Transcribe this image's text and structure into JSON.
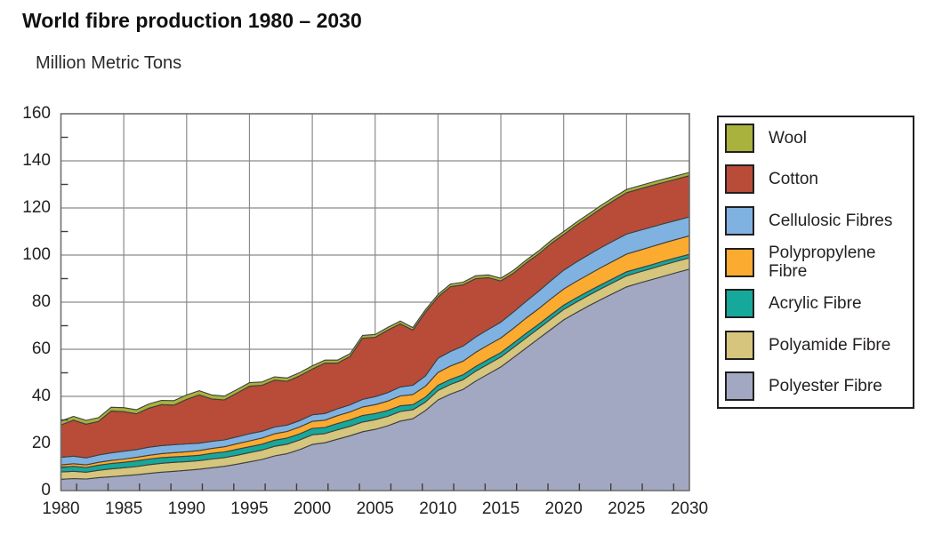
{
  "chart_data": {
    "type": "area",
    "stacked": true,
    "title": "World fibre production 1980 – 2030",
    "ylabel": "Million Metric Tons",
    "xlabel": "",
    "x_min": 1980,
    "x_max": 2030,
    "x_step": 1,
    "ylim": [
      0,
      160
    ],
    "y_major_ticks": [
      0,
      20,
      40,
      60,
      80,
      100,
      120,
      140,
      160
    ],
    "y_minor_tick_step": 10,
    "x_tick_years": [
      1980,
      1985,
      1990,
      1995,
      2000,
      2005,
      2010,
      2015,
      2020,
      2025,
      2030
    ],
    "x_minor_tick_step": 2.5,
    "grid": "major-both",
    "legend_position": "right-box",
    "legend_order_top_to_bottom": [
      "wool",
      "cotton",
      "cellulosic",
      "polypropylene",
      "acrylic",
      "polyamide",
      "polyester"
    ],
    "frame_color": "#6f6f6f",
    "grid_color": "#8a8a8a",
    "band_outline_color": "#3f3f3f",
    "tick_color": "#3f3f3f",
    "series": [
      {
        "id": "polyester",
        "label": "Polyester Fibre",
        "color": "#a2a8c1",
        "values": [
          4.8,
          5.1,
          4.9,
          5.5,
          5.9,
          6.3,
          6.7,
          7.3,
          7.8,
          8.2,
          8.6,
          9.1,
          9.7,
          10.3,
          11.2,
          12.2,
          13.2,
          14.7,
          15.7,
          17.4,
          19.6,
          20.3,
          21.8,
          23.3,
          25.0,
          26.0,
          27.5,
          29.5,
          30.5,
          34.0,
          38.5,
          41.0,
          43.0,
          46.5,
          49.5,
          52.5,
          56.5,
          60.5,
          64.5,
          68.5,
          72.5,
          75.5,
          78.5,
          81.2,
          83.9,
          86.5,
          88.1,
          89.6,
          91.1,
          92.6,
          94.0
        ]
      },
      {
        "id": "polyamide",
        "label": "Polyamide Fibre",
        "color": "#d5c57d",
        "values": [
          3.1,
          3.1,
          2.9,
          3.1,
          3.3,
          3.4,
          3.5,
          3.7,
          3.8,
          3.8,
          3.7,
          3.6,
          3.7,
          3.7,
          3.8,
          3.9,
          4.0,
          4.1,
          4.0,
          4.1,
          4.1,
          3.9,
          4.0,
          4.0,
          4.1,
          4.1,
          4.0,
          4.1,
          3.8,
          3.6,
          4.0,
          4.1,
          4.1,
          4.2,
          4.2,
          4.2,
          4.2,
          4.3,
          4.3,
          4.4,
          4.4,
          4.5,
          4.5,
          4.6,
          4.6,
          4.7,
          4.7,
          4.7,
          4.8,
          4.8,
          4.8
        ]
      },
      {
        "id": "acrylic",
        "label": "Acrylic Fibre",
        "color": "#16a89b",
        "values": [
          2.0,
          2.1,
          2.0,
          2.2,
          2.3,
          2.3,
          2.4,
          2.4,
          2.4,
          2.3,
          2.3,
          2.3,
          2.4,
          2.4,
          2.5,
          2.5,
          2.5,
          2.6,
          2.6,
          2.6,
          2.7,
          2.6,
          2.7,
          2.7,
          2.8,
          2.6,
          2.5,
          2.4,
          2.2,
          2.1,
          2.2,
          2.1,
          2.1,
          2.0,
          2.0,
          1.9,
          1.9,
          1.9,
          1.8,
          1.8,
          1.8,
          1.8,
          1.7,
          1.7,
          1.7,
          1.7,
          1.6,
          1.6,
          1.6,
          1.5,
          1.5
        ]
      },
      {
        "id": "polypropylene",
        "label": "Polypropylene Fibre",
        "color": "#fbab30",
        "values": [
          1.0,
          1.1,
          1.1,
          1.2,
          1.3,
          1.4,
          1.5,
          1.6,
          1.7,
          1.8,
          1.9,
          2.0,
          2.1,
          2.2,
          2.4,
          2.5,
          2.6,
          2.7,
          2.8,
          2.9,
          3.0,
          3.1,
          3.3,
          3.4,
          3.6,
          3.8,
          4.0,
          4.2,
          4.3,
          4.6,
          5.5,
          5.7,
          5.8,
          6.0,
          6.1,
          6.2,
          6.3,
          6.5,
          6.6,
          6.8,
          6.9,
          7.0,
          7.1,
          7.3,
          7.4,
          7.5,
          7.6,
          7.7,
          7.7,
          7.8,
          7.9
        ]
      },
      {
        "id": "cellulosic",
        "label": "Cellulosic Fibres",
        "color": "#7fb2e1",
        "values": [
          3.2,
          3.2,
          3.0,
          3.1,
          3.2,
          3.3,
          3.3,
          3.4,
          3.4,
          3.4,
          3.3,
          3.1,
          3.0,
          2.9,
          2.9,
          3.0,
          2.9,
          2.9,
          2.7,
          2.7,
          2.8,
          2.8,
          2.9,
          3.0,
          3.2,
          3.4,
          3.6,
          3.8,
          3.9,
          4.4,
          6.0,
          6.2,
          6.4,
          6.5,
          6.6,
          6.7,
          6.9,
          7.1,
          7.4,
          7.7,
          8.0,
          8.2,
          8.4,
          8.5,
          8.5,
          8.5,
          8.4,
          8.3,
          8.2,
          8.1,
          8.0
        ]
      },
      {
        "id": "cotton",
        "label": "Cotton",
        "color": "#b84c38",
        "values": [
          13.8,
          15.3,
          14.3,
          14.3,
          17.8,
          16.8,
          15.2,
          16.6,
          17.4,
          16.8,
          18.9,
          20.5,
          18.0,
          17.0,
          18.6,
          20.2,
          19.5,
          19.9,
          18.6,
          19.0,
          19.4,
          21.4,
          19.4,
          20.5,
          26.0,
          25.2,
          26.5,
          26.8,
          23.4,
          27.0,
          26.0,
          27.5,
          26.0,
          24.8,
          22.0,
          17.5,
          16.5,
          16.3,
          15.8,
          15.7,
          15.1,
          15.6,
          16.0,
          16.5,
          17.1,
          17.6,
          17.6,
          17.6,
          17.5,
          17.5,
          17.5
        ]
      },
      {
        "id": "wool",
        "label": "Wool",
        "color": "#a8b23c",
        "values": [
          1.6,
          1.6,
          1.6,
          1.6,
          1.6,
          1.7,
          1.7,
          1.8,
          1.8,
          1.9,
          1.9,
          1.8,
          1.7,
          1.6,
          1.5,
          1.5,
          1.4,
          1.4,
          1.4,
          1.4,
          1.4,
          1.3,
          1.3,
          1.2,
          1.2,
          1.2,
          1.2,
          1.2,
          1.1,
          1.1,
          1.1,
          1.1,
          1.1,
          1.2,
          1.2,
          1.2,
          1.2,
          1.2,
          1.3,
          1.3,
          1.3,
          1.3,
          1.3,
          1.4,
          1.4,
          1.4,
          1.4,
          1.4,
          1.4,
          1.4,
          1.4
        ]
      }
    ]
  }
}
